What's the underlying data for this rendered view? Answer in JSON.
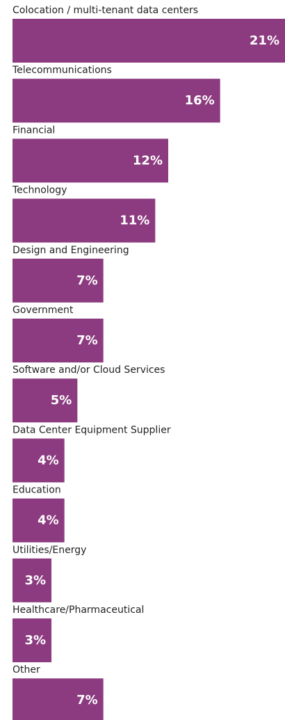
{
  "chart_data": {
    "type": "bar",
    "orientation": "horizontal",
    "categories": [
      "Colocation / multi-tenant data centers",
      "Telecommunications",
      "Financial",
      "Technology",
      "Design and Engineering",
      "Government",
      "Software and/or Cloud Services",
      "Data Center Equipment Supplier",
      "Education",
      "Utilities/Energy",
      "Healthcare/Pharmaceutical",
      "Other"
    ],
    "values": [
      21,
      16,
      12,
      11,
      7,
      7,
      5,
      4,
      4,
      3,
      3,
      7
    ],
    "value_labels": [
      "21%",
      "16%",
      "12%",
      "11%",
      "7%",
      "7%",
      "5%",
      "4%",
      "4%",
      "3%",
      "3%",
      "7%"
    ],
    "color": "#8c3b80"
  }
}
